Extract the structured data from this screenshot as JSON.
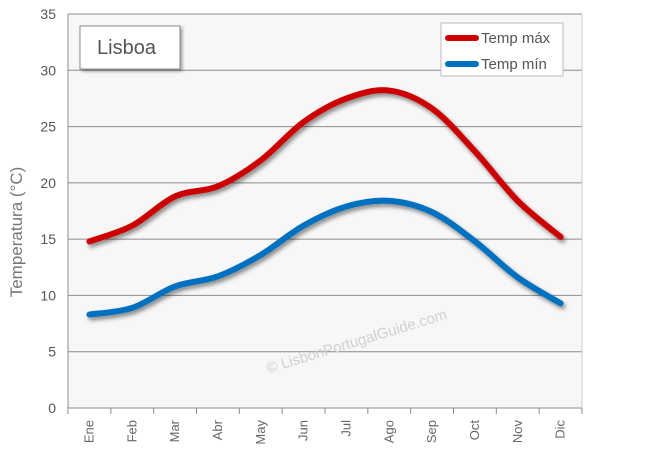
{
  "chart_data": {
    "type": "line",
    "categories": [
      "Ene",
      "Feb",
      "Mar",
      "Abr",
      "May",
      "Jun",
      "Jul",
      "Ago",
      "Sep",
      "Oct",
      "Nov",
      "Dic"
    ],
    "series": [
      {
        "name": "Temp máx",
        "color": "#cc0000",
        "values": [
          14.8,
          16.2,
          18.8,
          19.7,
          22.0,
          25.4,
          27.5,
          28.2,
          26.6,
          22.8,
          18.4,
          15.2
        ]
      },
      {
        "name": "Temp mín",
        "color": "#0070c0",
        "values": [
          8.3,
          8.9,
          10.8,
          11.7,
          13.6,
          16.2,
          17.9,
          18.4,
          17.4,
          14.8,
          11.6,
          9.3
        ]
      }
    ],
    "ylabel": "Temperatura (°C)",
    "ylim": [
      0,
      35
    ],
    "yticks": [
      0,
      5,
      10,
      15,
      20,
      25,
      30,
      35
    ],
    "grid": true,
    "legend_position": "top-right"
  },
  "title_box": {
    "label": "Lisboa"
  },
  "watermark": "© LisbonPortugalGuide.com"
}
